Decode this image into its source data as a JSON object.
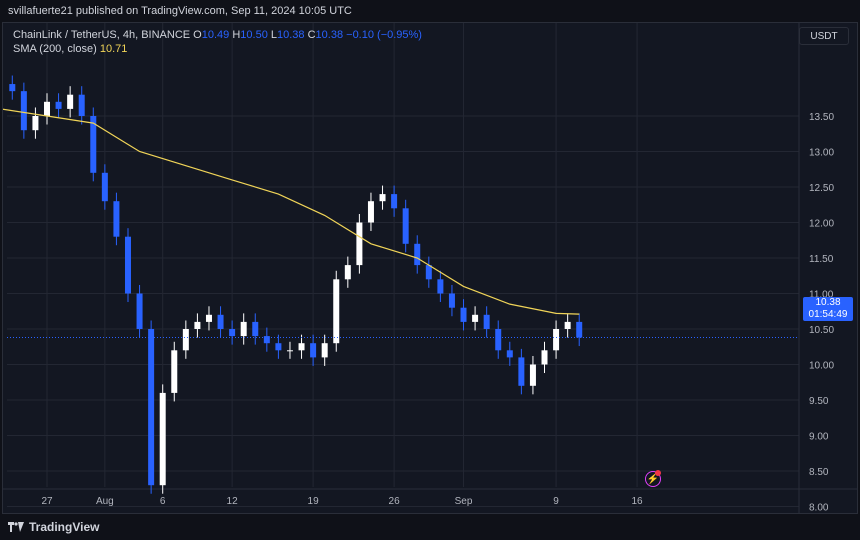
{
  "header": {
    "publish_text": "svillafuerte21 published on TradingView.com, Sep 11, 2024 10:05 UTC"
  },
  "legend": {
    "symbol": "ChainLink / TetherUS, 4h, BINANCE",
    "o_label": "O",
    "o_value": "10.49",
    "h_label": "H",
    "h_value": "10.50",
    "l_label": "L",
    "l_value": "10.38",
    "c_label": "C",
    "c_value": "10.38",
    "change": "−0.10 (−0.95%)",
    "sma_label": "SMA (200, close)",
    "sma_value": "10.71"
  },
  "currency": "USDT",
  "price_tag": {
    "price": "10.38",
    "countdown": "01:54:49"
  },
  "footer": {
    "brand": "TradingView"
  },
  "colors": {
    "candle": "#2962ff",
    "candle_up": "#ffffff",
    "sma": "#f0d458",
    "grid": "#232733",
    "background": "#131722"
  },
  "chart_data": {
    "type": "line",
    "y_ticks": [
      "13.50",
      "13.00",
      "12.50",
      "12.00",
      "11.50",
      "11.00",
      "10.50",
      "10.00",
      "9.50",
      "9.00",
      "8.50",
      "8.00"
    ],
    "x_ticks": [
      "27",
      "Aug",
      "6",
      "12",
      "19",
      "26",
      "Sep",
      "9",
      "16"
    ],
    "ylim": [
      7.8,
      14.0
    ],
    "series": [
      {
        "name": "ChainLink / TetherUS",
        "x": [
          "2024-07-24",
          "2024-07-25",
          "2024-07-26",
          "2024-07-27",
          "2024-07-28",
          "2024-07-29",
          "2024-07-30",
          "2024-07-31",
          "2024-08-01",
          "2024-08-02",
          "2024-08-03",
          "2024-08-04",
          "2024-08-05",
          "2024-08-06",
          "2024-08-07",
          "2024-08-08",
          "2024-08-09",
          "2024-08-10",
          "2024-08-11",
          "2024-08-12",
          "2024-08-13",
          "2024-08-14",
          "2024-08-15",
          "2024-08-16",
          "2024-08-17",
          "2024-08-18",
          "2024-08-19",
          "2024-08-20",
          "2024-08-21",
          "2024-08-22",
          "2024-08-23",
          "2024-08-24",
          "2024-08-25",
          "2024-08-26",
          "2024-08-27",
          "2024-08-28",
          "2024-08-29",
          "2024-08-30",
          "2024-08-31",
          "2024-09-01",
          "2024-09-02",
          "2024-09-03",
          "2024-09-04",
          "2024-09-05",
          "2024-09-06",
          "2024-09-07",
          "2024-09-08",
          "2024-09-09",
          "2024-09-10",
          "2024-09-11"
        ],
        "values": [
          13.85,
          13.3,
          13.5,
          13.7,
          13.6,
          13.8,
          13.5,
          12.7,
          12.3,
          11.8,
          11.0,
          10.5,
          8.3,
          9.6,
          10.2,
          10.5,
          10.6,
          10.7,
          10.5,
          10.4,
          10.6,
          10.4,
          10.3,
          10.2,
          10.2,
          10.3,
          10.1,
          10.3,
          11.2,
          11.4,
          12.0,
          12.3,
          12.4,
          12.2,
          11.7,
          11.4,
          11.2,
          11.0,
          10.8,
          10.6,
          10.7,
          10.5,
          10.2,
          10.1,
          9.7,
          10.0,
          10.2,
          10.5,
          10.6,
          10.38
        ]
      },
      {
        "name": "SMA (200, close)",
        "x": [
          "2024-07-23",
          "2024-07-27",
          "2024-07-31",
          "2024-08-04",
          "2024-08-08",
          "2024-08-12",
          "2024-08-16",
          "2024-08-20",
          "2024-08-24",
          "2024-08-28",
          "2024-09-01",
          "2024-09-05",
          "2024-09-09",
          "2024-09-11"
        ],
        "values": [
          13.6,
          13.5,
          13.4,
          13.0,
          12.8,
          12.6,
          12.4,
          12.1,
          11.7,
          11.5,
          11.1,
          10.85,
          10.72,
          10.71
        ]
      }
    ]
  }
}
